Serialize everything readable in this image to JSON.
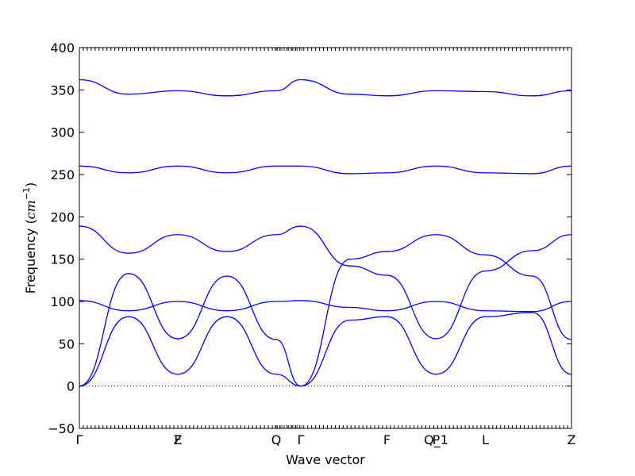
{
  "chart_data": {
    "type": "line",
    "xlabel": "Wave vector",
    "ylabel_text": "Frequency (",
    "ylabel_unit_base": "cm",
    "ylabel_unit_exp": "−1",
    "ylabel_close": ")",
    "ylim": [
      -50,
      400
    ],
    "yticks": [
      -50,
      0,
      50,
      100,
      150,
      200,
      250,
      300,
      350,
      400
    ],
    "ytick_labels": [
      "−50",
      "0",
      "50",
      "100",
      "150",
      "200",
      "250",
      "300",
      "350",
      "400"
    ],
    "xlim": [
      0,
      1
    ],
    "high_symmetry_points": [
      {
        "label": "Γ",
        "x": 0.0
      },
      {
        "label": "F",
        "x": 0.2
      },
      {
        "label": "Z",
        "x": 0.2
      },
      {
        "label": "Q",
        "x": 0.4
      },
      {
        "label": "Γ",
        "x": 0.45
      },
      {
        "label": "F",
        "x": 0.625
      },
      {
        "label": "P",
        "x": 0.725
      },
      {
        "label": "Q_1",
        "x": 0.725
      },
      {
        "label": "L",
        "x": 0.825
      },
      {
        "label": "Z",
        "x": 1.0
      }
    ],
    "zero_line": {
      "y": 0,
      "style": "dotted"
    },
    "line_color": "#0000ff",
    "series": [
      {
        "x": [
          0,
          0.1,
          0.2,
          0.3,
          0.4,
          0.45,
          0.55,
          0.625,
          0.725,
          0.825,
          0.92,
          1.0
        ],
        "y": [
          362,
          345,
          349,
          343,
          349,
          362,
          345,
          343,
          349,
          348,
          343,
          349
        ]
      },
      {
        "x": [
          0,
          0.1,
          0.2,
          0.3,
          0.4,
          0.45,
          0.55,
          0.625,
          0.725,
          0.825,
          0.92,
          1.0
        ],
        "y": [
          260,
          252,
          260,
          252,
          260,
          260,
          251,
          252,
          260,
          252,
          251,
          260
        ]
      },
      {
        "x": [
          0,
          0.1,
          0.2,
          0.3,
          0.4,
          0.45,
          0.55,
          0.625,
          0.725,
          0.825,
          0.92,
          1.0
        ],
        "y": [
          189,
          157,
          179,
          159,
          179,
          189,
          142,
          131,
          56,
          136,
          160,
          179
        ]
      },
      {
        "x": [
          0,
          0.1,
          0.2,
          0.3,
          0.4,
          0.45,
          0.55,
          0.625,
          0.725,
          0.825,
          0.92,
          1.0
        ],
        "y": [
          0,
          133,
          56,
          130,
          55,
          0,
          150,
          159,
          179,
          155,
          130,
          55
        ]
      },
      {
        "x": [
          0,
          0.1,
          0.2,
          0.3,
          0.4,
          0.45,
          0.55,
          0.625,
          0.725,
          0.825,
          0.92,
          1.0
        ],
        "y": [
          101,
          89,
          100,
          89,
          100,
          101,
          93,
          89,
          100,
          89,
          88,
          100
        ]
      },
      {
        "x": [
          0,
          0.1,
          0.2,
          0.3,
          0.4,
          0.45,
          0.55,
          0.625,
          0.725,
          0.825,
          0.92,
          1.0
        ],
        "y": [
          0,
          82,
          14,
          82,
          14,
          0,
          78,
          82,
          14,
          82,
          87,
          14
        ]
      }
    ]
  }
}
